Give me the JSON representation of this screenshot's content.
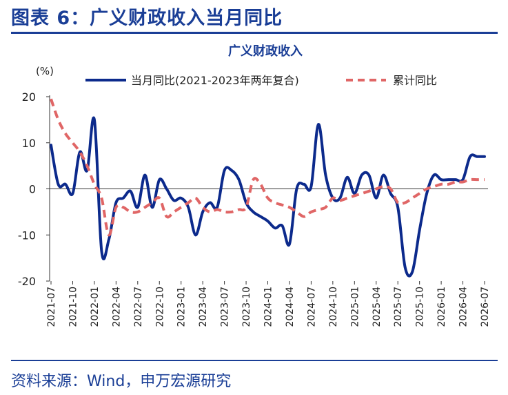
{
  "figure_title": "图表 6：广义财政收入当月同比",
  "source": "资料来源：Wind，申万宏源研究",
  "colors": {
    "brand": "#1a3e96",
    "series1": "#0c2a8c",
    "series2": "#e06666"
  },
  "chart_data": {
    "type": "line",
    "title": "广义财政收入",
    "ylabel": "(%)",
    "xlabel": "",
    "ylim": [
      -20,
      20
    ],
    "yticks": [
      -20,
      -10,
      0,
      10,
      20
    ],
    "legend_position": "top",
    "grid": false,
    "x": [
      "2021-07",
      "2021-08",
      "2021-09",
      "2021-10",
      "2021-11",
      "2021-12",
      "2022-01",
      "2022-02",
      "2022-03",
      "2022-04",
      "2022-05",
      "2022-06",
      "2022-07",
      "2022-08",
      "2022-09",
      "2022-10",
      "2022-11",
      "2022-12",
      "2023-01",
      "2023-02",
      "2023-03",
      "2023-04",
      "2023-05",
      "2023-06",
      "2023-07",
      "2023-08",
      "2023-09",
      "2023-10",
      "2023-11",
      "2023-12",
      "2024-01",
      "2024-02",
      "2024-03",
      "2024-04",
      "2024-05",
      "2024-06",
      "2024-07",
      "2024-08",
      "2024-09",
      "2024-10",
      "2024-11",
      "2024-12",
      "2025-01",
      "2025-02",
      "2025-03",
      "2025-04",
      "2025-05",
      "2025-06",
      "2025-07",
      "2025-08",
      "2025-09",
      "2025-10",
      "2025-11",
      "2025-12",
      "2026-01",
      "2026-02",
      "2026-03",
      "2026-04",
      "2026-05",
      "2026-06",
      "2026-07"
    ],
    "xtick_labels": [
      "2021-07",
      "2021-10",
      "2022-01",
      "2022-04",
      "2022-07",
      "2022-10",
      "2023-01",
      "2023-04",
      "2023-07",
      "2023-10",
      "2024-01",
      "2024-04",
      "2024-07",
      "2024-10",
      "2025-01",
      "2025-04",
      "2025-07",
      "2025-10",
      "2026-01",
      "2026-04",
      "2026-07"
    ],
    "series": [
      {
        "name": "当月同比(2021-2023年两年复合)",
        "style": "solid",
        "values": [
          9.5,
          1,
          1,
          -1,
          8,
          4,
          15,
          -13.5,
          -11,
          -3,
          -2,
          -0.5,
          -4,
          3,
          -4,
          2,
          0,
          -2.5,
          -2,
          -4,
          -10,
          -5,
          -3,
          -4,
          4,
          4,
          2,
          -3,
          -5,
          -6,
          -7,
          -8.5,
          -8,
          -12,
          0,
          1,
          0.5,
          14,
          3,
          -2,
          -2,
          2.5,
          -1,
          3,
          3,
          -2,
          3,
          -1,
          -4,
          -17,
          -18,
          -9,
          -1,
          3,
          2,
          2,
          2,
          2,
          7,
          7,
          7
        ]
      },
      {
        "name": "累计同比",
        "style": "dashed",
        "values": [
          19.5,
          15,
          12,
          10,
          8,
          5,
          1,
          -2,
          -10,
          -4,
          -4,
          -5,
          -5,
          -4,
          -3,
          -2,
          -6,
          -5,
          -4,
          -3,
          -2,
          -4,
          -5,
          -4.5,
          -5,
          -5,
          -4.5,
          -4,
          2,
          1,
          -2,
          -3,
          -3.5,
          -4,
          -5,
          -6,
          -5,
          -4.5,
          -4,
          -2,
          -2.5,
          -2,
          -1.5,
          -1,
          -0.5,
          0,
          0.5,
          0,
          -3,
          -3,
          -2,
          -1,
          0,
          0.5,
          1,
          1,
          1.5,
          1.5,
          2,
          2,
          2
        ]
      }
    ]
  }
}
